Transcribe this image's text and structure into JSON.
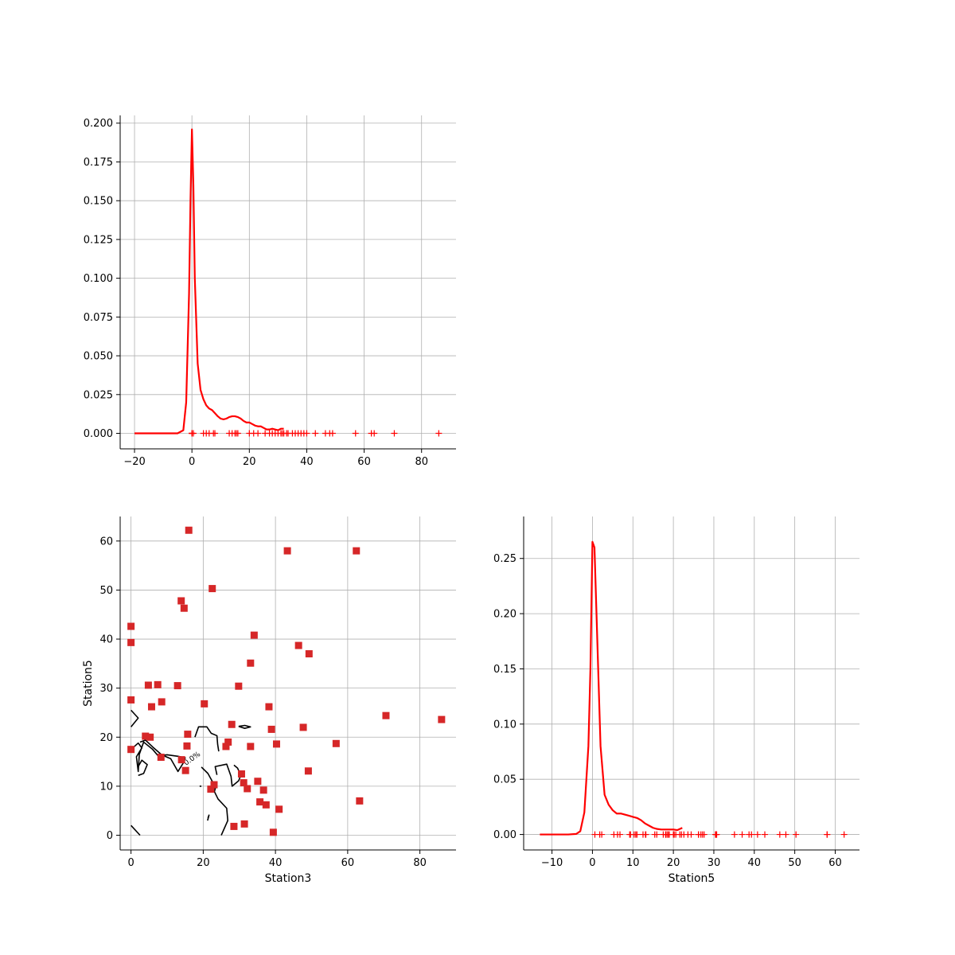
{
  "colors": {
    "kde_line": "#ff0000",
    "rug": "#ff0000",
    "scatter": "#d62728",
    "contour": "#000000",
    "grid": "#b0b0b0"
  },
  "chart_data": [
    {
      "type": "line",
      "panel": "top-left",
      "title": "",
      "xlabel": "",
      "ylabel": "",
      "xlim": [
        -25,
        92
      ],
      "ylim": [
        -0.01,
        0.205
      ],
      "xticks": [
        -20,
        0,
        20,
        40,
        60,
        80
      ],
      "yticks": [
        0.0,
        0.025,
        0.05,
        0.075,
        0.1,
        0.125,
        0.15,
        0.175,
        0.2
      ],
      "ytick_labels": [
        "0.000",
        "0.025",
        "0.050",
        "0.075",
        "0.100",
        "0.125",
        "0.150",
        "0.175",
        "0.200"
      ],
      "grid": true,
      "series": [
        {
          "kind": "kde",
          "x": [
            -20,
            -10,
            -5,
            -3,
            -2,
            -1,
            -0.5,
            0,
            0.5,
            1,
            2,
            3,
            4,
            5,
            6,
            7,
            8,
            9,
            10,
            11,
            12,
            13,
            14,
            15,
            16,
            17,
            18,
            19,
            20,
            21,
            22,
            23,
            24,
            25,
            26,
            27,
            28,
            29,
            30,
            31,
            32
          ],
          "y": [
            0.0,
            0.0,
            0.0,
            0.002,
            0.02,
            0.09,
            0.15,
            0.196,
            0.16,
            0.1,
            0.045,
            0.028,
            0.022,
            0.018,
            0.016,
            0.015,
            0.013,
            0.011,
            0.0095,
            0.009,
            0.0095,
            0.0105,
            0.011,
            0.011,
            0.0105,
            0.0095,
            0.008,
            0.007,
            0.007,
            0.006,
            0.005,
            0.0045,
            0.0045,
            0.0035,
            0.0025,
            0.0025,
            0.003,
            0.0025,
            0.002,
            0.003,
            0.003
          ]
        },
        {
          "kind": "rug",
          "x": [
            0,
            0,
            0,
            0.5,
            4,
            5,
            6,
            7.5,
            8,
            13,
            14,
            15,
            15.5,
            16,
            20,
            21.5,
            23,
            25.5,
            27,
            28,
            29,
            30,
            31,
            31.5,
            32,
            33,
            33.5,
            35,
            36,
            37,
            38,
            39,
            40,
            43,
            46.5,
            48,
            49,
            57,
            62.5,
            63.5,
            70.5,
            86
          ]
        }
      ]
    },
    {
      "type": "scatter",
      "panel": "bottom-left",
      "title": "",
      "xlabel": "Station3",
      "ylabel": "Station5",
      "xlim": [
        -3,
        90
      ],
      "ylim": [
        -3,
        65
      ],
      "xticks": [
        0,
        20,
        40,
        60,
        80
      ],
      "yticks": [
        0,
        10,
        20,
        30,
        40,
        50,
        60
      ],
      "grid": true,
      "points": [
        [
          0,
          42.6
        ],
        [
          0,
          39.3
        ],
        [
          0,
          27.6
        ],
        [
          0,
          17.5
        ],
        [
          4.0,
          20.2
        ],
        [
          4.8,
          30.6
        ],
        [
          5.3,
          20.0
        ],
        [
          5.7,
          26.2
        ],
        [
          7.4,
          30.7
        ],
        [
          8.3,
          15.9
        ],
        [
          8.5,
          27.2
        ],
        [
          12.9,
          30.5
        ],
        [
          13.9,
          47.8
        ],
        [
          14.0,
          15.4
        ],
        [
          14.7,
          46.3
        ],
        [
          15.1,
          13.2
        ],
        [
          15.5,
          18.2
        ],
        [
          15.7,
          20.6
        ],
        [
          16.0,
          62.2
        ],
        [
          20.3,
          26.8
        ],
        [
          22.1,
          9.4
        ],
        [
          22.5,
          50.3
        ],
        [
          23.0,
          10.3
        ],
        [
          26.3,
          18.1
        ],
        [
          26.9,
          19.0
        ],
        [
          27.9,
          22.6
        ],
        [
          28.5,
          1.8
        ],
        [
          29.8,
          30.4
        ],
        [
          30.6,
          12.5
        ],
        [
          31.2,
          10.7
        ],
        [
          31.4,
          2.3
        ],
        [
          32.2,
          9.5
        ],
        [
          33.1,
          18.1
        ],
        [
          33.1,
          35.1
        ],
        [
          34.1,
          40.8
        ],
        [
          35.1,
          11.0
        ],
        [
          35.7,
          6.8
        ],
        [
          36.7,
          9.2
        ],
        [
          37.4,
          6.2
        ],
        [
          38.2,
          26.2
        ],
        [
          38.9,
          21.6
        ],
        [
          39.4,
          0.6
        ],
        [
          40.3,
          18.6
        ],
        [
          41.0,
          5.3
        ],
        [
          43.3,
          58.0
        ],
        [
          46.4,
          38.7
        ],
        [
          47.7,
          22.0
        ],
        [
          49.1,
          13.1
        ],
        [
          49.3,
          37.0
        ],
        [
          56.8,
          18.7
        ],
        [
          62.4,
          58.0
        ],
        [
          63.3,
          7.0
        ],
        [
          70.6,
          24.4
        ],
        [
          86.0,
          23.6
        ]
      ],
      "contour_paths": [
        [
          [
            0,
            22.1
          ],
          [
            2,
            23.9
          ],
          [
            0,
            25.5
          ]
        ],
        [
          [
            0,
            2
          ],
          [
            2.5,
            0
          ]
        ],
        [
          [
            0,
            17.5
          ],
          [
            2,
            18.8
          ],
          [
            3,
            17.8
          ],
          [
            1.5,
            16
          ],
          [
            2,
            13
          ],
          [
            2.3,
            16.5
          ],
          [
            3.5,
            19
          ],
          [
            6,
            17.5
          ],
          [
            7.5,
            16.2
          ],
          [
            10,
            16.4
          ],
          [
            13,
            16.1
          ],
          [
            15,
            15.8
          ],
          [
            14.7,
            15
          ],
          [
            13,
            13
          ],
          [
            11,
            15.6
          ],
          [
            8.5,
            16.4
          ],
          [
            6,
            18
          ],
          [
            4,
            19.4
          ],
          [
            2.5,
            19
          ]
        ],
        [
          [
            2,
            14
          ],
          [
            3,
            15.3
          ],
          [
            4.5,
            14.4
          ],
          [
            3.5,
            12.6
          ],
          [
            2,
            12.2
          ]
        ],
        [
          [
            17.7,
            20
          ],
          [
            18.7,
            22.1
          ],
          [
            21,
            22.1
          ],
          [
            22.2,
            20.8
          ],
          [
            23.8,
            20.3
          ],
          [
            24,
            18.5
          ],
          [
            24.3,
            17.1
          ]
        ],
        [
          [
            29.8,
            22.2
          ],
          [
            31.5,
            22.4
          ],
          [
            33.1,
            22.1
          ],
          [
            31.5,
            21.8
          ],
          [
            29.8,
            22.2
          ]
        ],
        [
          [
            19.5,
            13.9
          ],
          [
            21.3,
            12.6
          ],
          [
            22.5,
            11
          ],
          [
            22.4,
            9.5
          ],
          [
            23.4,
            9.7
          ],
          [
            23.1,
            8.9
          ],
          [
            24.1,
            7.4
          ],
          [
            26.5,
            5.5
          ],
          [
            26.8,
            3
          ],
          [
            25,
            0
          ]
        ],
        [
          [
            23.8,
            12.3
          ],
          [
            23.3,
            14
          ],
          [
            26.5,
            14.5
          ],
          [
            27.7,
            12
          ],
          [
            28,
            10
          ],
          [
            29.8,
            11.1
          ],
          [
            30.4,
            12.2
          ],
          [
            29.5,
            13.7
          ],
          [
            28.5,
            14.3
          ]
        ],
        [
          [
            19,
            10
          ],
          [
            19.5,
            10
          ]
        ],
        [
          [
            21.3,
            3.5
          ],
          [
            21.6,
            4.1
          ],
          [
            21.2,
            3
          ]
        ]
      ],
      "contour_labels": [
        {
          "text": "0.0%",
          "x": 15.2,
          "y": 14.2
        }
      ]
    },
    {
      "type": "line",
      "panel": "bottom-right",
      "title": "",
      "xlabel": "Station5",
      "ylabel": "",
      "xlim": [
        -17,
        66
      ],
      "ylim": [
        -0.014,
        0.288
      ],
      "xticks": [
        -10,
        0,
        10,
        20,
        30,
        40,
        50,
        60
      ],
      "yticks": [
        0.0,
        0.05,
        0.1,
        0.15,
        0.2,
        0.25
      ],
      "ytick_labels": [
        "0.00",
        "0.05",
        "0.10",
        "0.15",
        "0.20",
        "0.25"
      ],
      "grid": true,
      "series": [
        {
          "kind": "kde",
          "x": [
            -13,
            -6,
            -4,
            -3,
            -2,
            -1,
            -0.5,
            0,
            0.5,
            1,
            2,
            3,
            4,
            5,
            6,
            7,
            8,
            9,
            10,
            11,
            12,
            13,
            14,
            15,
            16,
            17,
            18,
            19,
            20,
            21,
            22.2
          ],
          "y": [
            0.0,
            0.0,
            0.0005,
            0.003,
            0.02,
            0.08,
            0.15,
            0.265,
            0.26,
            0.2,
            0.08,
            0.036,
            0.027,
            0.022,
            0.019,
            0.019,
            0.018,
            0.017,
            0.016,
            0.015,
            0.013,
            0.01,
            0.008,
            0.006,
            0.005,
            0.0045,
            0.0045,
            0.0045,
            0.0045,
            0.004,
            0.006
          ]
        },
        {
          "kind": "rug",
          "x": [
            0.6,
            1.8,
            2.3,
            5.3,
            6.2,
            6.8,
            9.2,
            9.4,
            10.3,
            10.7,
            11.0,
            12.5,
            13.1,
            13.2,
            15.4,
            15.9,
            17.5,
            18.1,
            18.1,
            18.2,
            18.6,
            18.7,
            19.0,
            20.0,
            20.2,
            20.6,
            21.6,
            22.0,
            22.6,
            23.6,
            24.4,
            26.2,
            26.2,
            26.8,
            27.2,
            27.6,
            30.4,
            30.5,
            30.6,
            30.7,
            35.1,
            37.0,
            38.7,
            39.3,
            40.8,
            42.6,
            46.3,
            47.8,
            50.3,
            58.0,
            58.0,
            62.2
          ]
        }
      ]
    }
  ]
}
